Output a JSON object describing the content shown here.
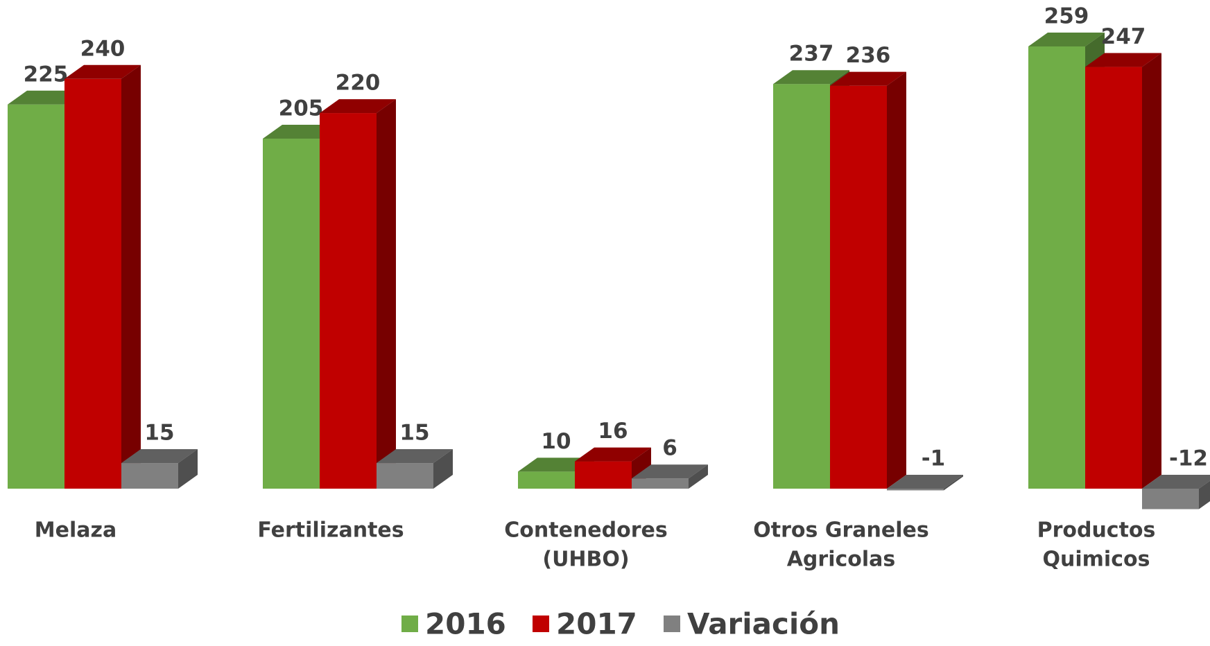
{
  "chart_data": {
    "type": "bar3d",
    "categories": [
      [
        "Melaza"
      ],
      [
        "Fertilizantes"
      ],
      [
        "Contenedores",
        "(UHBO)"
      ],
      [
        "Otros Graneles",
        "Agricolas"
      ],
      [
        "Productos",
        "Quimicos"
      ]
    ],
    "series": [
      {
        "name": "2016",
        "color": "#70ad47",
        "values": [
          225,
          205,
          10,
          237,
          259
        ]
      },
      {
        "name": "2017",
        "color": "#c00000",
        "values": [
          240,
          220,
          16,
          236,
          247
        ]
      },
      {
        "name": "Variación",
        "color": "#808080",
        "values": [
          15,
          15,
          6,
          -1,
          -12
        ]
      }
    ],
    "legend": "bottom"
  }
}
